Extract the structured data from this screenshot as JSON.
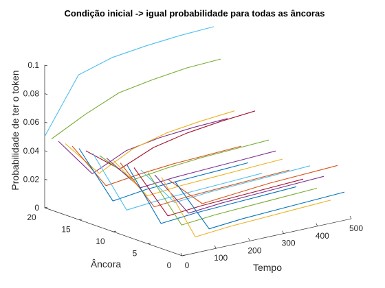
{
  "chart_data": {
    "type": "line",
    "title": "Condição inicial -> igual probabilidade para todas as âncoras",
    "xlabel": "Tempo",
    "ylabel": "Âncora",
    "zlabel": "Probabilidade de ter o token",
    "xlim": [
      0,
      500
    ],
    "ylim": [
      0,
      20
    ],
    "zlim": [
      0,
      0.1
    ],
    "xticks": [
      "0",
      "100",
      "200",
      "300",
      "400",
      "500"
    ],
    "yticks": [
      "0",
      "5",
      "10",
      "15",
      "20"
    ],
    "zticks": [
      "0",
      "0.02",
      "0.04",
      "0.06",
      "0.08",
      "0.1"
    ],
    "grid": false,
    "colors": [
      "#0072BD",
      "#D95319",
      "#EDB120",
      "#7E2F8E",
      "#77AC30",
      "#4DBEEE",
      "#A2142F"
    ],
    "series": [
      {
        "anchor": 1,
        "values": [
          0.05,
          0.012,
          0.014,
          0.015,
          0.016,
          0.017
        ]
      },
      {
        "anchor": 2,
        "values": [
          0.05,
          0.028,
          0.03,
          0.032,
          0.033,
          0.034
        ]
      },
      {
        "anchor": 3,
        "values": [
          0.05,
          0.003,
          0.005,
          0.006,
          0.007,
          0.008
        ]
      },
      {
        "anchor": 4,
        "values": [
          0.05,
          0.018,
          0.02,
          0.021,
          0.022,
          0.023
        ]
      },
      {
        "anchor": 5,
        "values": [
          0.05,
          0.008,
          0.01,
          0.011,
          0.012,
          0.013
        ]
      },
      {
        "anchor": 6,
        "values": [
          0.05,
          0.022,
          0.024,
          0.025,
          0.026,
          0.027
        ]
      },
      {
        "anchor": 7,
        "values": [
          0.05,
          0.011,
          0.013,
          0.014,
          0.015,
          0.016
        ]
      },
      {
        "anchor": 8,
        "values": [
          0.05,
          0.004,
          0.006,
          0.007,
          0.008,
          0.009
        ]
      },
      {
        "anchor": 9,
        "values": [
          0.05,
          0.014,
          0.016,
          0.017,
          0.018,
          0.019
        ]
      },
      {
        "anchor": 10,
        "values": [
          0.05,
          0.02,
          0.022,
          0.023,
          0.024,
          0.025
        ]
      },
      {
        "anchor": 11,
        "values": [
          0.05,
          0.024,
          0.026,
          0.027,
          0.028,
          0.029
        ]
      },
      {
        "anchor": 12,
        "values": [
          0.05,
          0.028,
          0.031,
          0.033,
          0.034,
          0.035
        ]
      },
      {
        "anchor": 13,
        "values": [
          0.05,
          0.005,
          0.007,
          0.008,
          0.009,
          0.01
        ]
      },
      {
        "anchor": 14,
        "values": [
          0.05,
          0.032,
          0.042,
          0.047,
          0.05,
          0.052
        ]
      },
      {
        "anchor": 15,
        "values": [
          0.05,
          0.008,
          0.011,
          0.012,
          0.013,
          0.014
        ]
      },
      {
        "anchor": 16,
        "values": [
          0.05,
          0.017,
          0.02,
          0.022,
          0.023,
          0.024
        ]
      },
      {
        "anchor": 17,
        "values": [
          0.05,
          0.024,
          0.036,
          0.042,
          0.045,
          0.047
        ]
      },
      {
        "anchor": 18,
        "values": [
          0.05,
          0.022,
          0.033,
          0.037,
          0.039,
          0.04
        ]
      },
      {
        "anchor": 19,
        "values": [
          0.05,
          0.062,
          0.072,
          0.076,
          0.079,
          0.08
        ]
      },
      {
        "anchor": 20,
        "values": [
          0.05,
          0.088,
          0.095,
          0.098,
          0.1,
          0.101
        ]
      }
    ],
    "x": [
      0,
      100,
      200,
      300,
      400,
      500
    ]
  }
}
